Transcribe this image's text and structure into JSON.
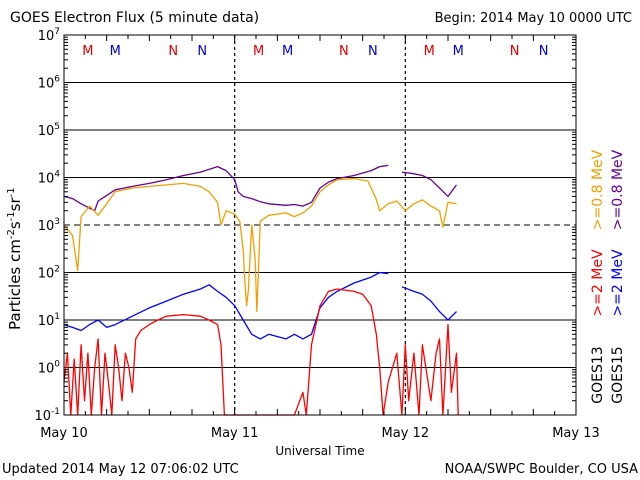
{
  "chart_data": {
    "type": "line",
    "title": "GOES Electron Flux (5 minute data)",
    "begin_label": "Begin: 2014 May 10 0000 UTC",
    "xlabel": "Universal Time",
    "ylabel_main": "Particles cm",
    "ylabel_sup1": "-2",
    "ylabel_mid1": "s",
    "ylabel_sup2": "-1",
    "ylabel_mid2": "sr",
    "ylabel_sup3": "-1",
    "x_ticks": [
      "May 10",
      "May 11",
      "May 12",
      "May 13"
    ],
    "x_range_days": [
      0,
      3
    ],
    "y_scale": "log",
    "ylim": [
      0.1,
      10000000
    ],
    "y_ticks": [
      {
        "base": "10",
        "exp": "7"
      },
      {
        "base": "10",
        "exp": "6"
      },
      {
        "base": "10",
        "exp": "5"
      },
      {
        "base": "10",
        "exp": "4"
      },
      {
        "base": "10",
        "exp": "3"
      },
      {
        "base": "10",
        "exp": "2"
      },
      {
        "base": "10",
        "exp": "1"
      },
      {
        "base": "10",
        "exp": "0"
      },
      {
        "base": "10",
        "exp": "-1"
      }
    ],
    "markers": [
      {
        "label": "M",
        "day": 0.14,
        "color": "#dd0000"
      },
      {
        "label": "M",
        "day": 0.3,
        "color": "#0000cc"
      },
      {
        "label": "N",
        "day": 0.64,
        "color": "#dd0000"
      },
      {
        "label": "N",
        "day": 0.81,
        "color": "#0000cc"
      },
      {
        "label": "M",
        "day": 1.14,
        "color": "#dd0000"
      },
      {
        "label": "M",
        "day": 1.31,
        "color": "#0000cc"
      },
      {
        "label": "N",
        "day": 1.64,
        "color": "#dd0000"
      },
      {
        "label": "N",
        "day": 1.81,
        "color": "#0000cc"
      },
      {
        "label": "M",
        "day": 2.14,
        "color": "#dd0000"
      },
      {
        "label": "M",
        "day": 2.31,
        "color": "#0000cc"
      },
      {
        "label": "N",
        "day": 2.64,
        "color": "#dd0000"
      },
      {
        "label": "N",
        "day": 2.81,
        "color": "#0000cc"
      }
    ],
    "threshold_line": 1000,
    "legend": [
      {
        "sat": "GOES13",
        "label": ">=0.8 MeV",
        "color": "#f0a000"
      },
      {
        "sat": "GOES15",
        "label": ">=0.8 MeV",
        "color": "#660099"
      },
      {
        "sat": "GOES13",
        "label": ">=2 MeV",
        "color": "#ff0000"
      },
      {
        "sat": "GOES15",
        "label": ">=2 MeV",
        "color": "#0000ff"
      }
    ],
    "legend_sat_labels": [
      "GOES13",
      "GOES15"
    ],
    "series": [
      {
        "name": "GOES15 >=0.8 MeV",
        "color": "#660099",
        "points": [
          [
            0.0,
            4000
          ],
          [
            0.05,
            3600
          ],
          [
            0.1,
            2800
          ],
          [
            0.18,
            2000
          ],
          [
            0.2,
            3200
          ],
          [
            0.25,
            4200
          ],
          [
            0.3,
            5500
          ],
          [
            0.4,
            6500
          ],
          [
            0.5,
            7500
          ],
          [
            0.6,
            9000
          ],
          [
            0.7,
            11000
          ],
          [
            0.8,
            13000
          ],
          [
            0.9,
            17000
          ],
          [
            0.95,
            14000
          ],
          [
            1.0,
            9000
          ],
          [
            1.02,
            5000
          ],
          [
            1.05,
            4000
          ],
          [
            1.1,
            3600
          ],
          [
            1.15,
            3100
          ],
          [
            1.2,
            2800
          ],
          [
            1.3,
            2600
          ],
          [
            1.35,
            2700
          ],
          [
            1.4,
            2500
          ],
          [
            1.45,
            3000
          ],
          [
            1.5,
            6000
          ],
          [
            1.55,
            8000
          ],
          [
            1.6,
            9500
          ],
          [
            1.7,
            11000
          ],
          [
            1.8,
            14000
          ],
          [
            1.85,
            17000
          ],
          [
            1.9,
            18000
          ]
        ]
      },
      {
        "name": "GOES15 >=0.8 MeV b",
        "color": "#660099",
        "points": [
          [
            1.98,
            13000
          ],
          [
            2.05,
            12000
          ],
          [
            2.1,
            11000
          ],
          [
            2.15,
            9000
          ],
          [
            2.2,
            6000
          ],
          [
            2.25,
            4000
          ],
          [
            2.27,
            5000
          ],
          [
            2.3,
            7000
          ]
        ]
      },
      {
        "name": "GOES13 >=0.8 MeV",
        "color": "#f0a000",
        "points": [
          [
            0.0,
            1000
          ],
          [
            0.05,
            600
          ],
          [
            0.08,
            110
          ],
          [
            0.1,
            1500
          ],
          [
            0.15,
            2500
          ],
          [
            0.2,
            1600
          ],
          [
            0.25,
            2800
          ],
          [
            0.3,
            5000
          ],
          [
            0.4,
            6000
          ],
          [
            0.5,
            6500
          ],
          [
            0.6,
            7000
          ],
          [
            0.7,
            7500
          ],
          [
            0.75,
            7000
          ],
          [
            0.8,
            6500
          ],
          [
            0.85,
            5000
          ],
          [
            0.9,
            3000
          ],
          [
            0.92,
            1000
          ],
          [
            0.95,
            2000
          ],
          [
            1.0,
            1700
          ],
          [
            1.03,
            1200
          ],
          [
            1.05,
            300
          ],
          [
            1.06,
            60
          ],
          [
            1.07,
            20
          ],
          [
            1.08,
            40
          ],
          [
            1.1,
            1000
          ],
          [
            1.12,
            200
          ],
          [
            1.13,
            15
          ],
          [
            1.15,
            1200
          ],
          [
            1.2,
            1600
          ],
          [
            1.3,
            1800
          ],
          [
            1.35,
            1500
          ],
          [
            1.4,
            1800
          ],
          [
            1.45,
            2500
          ],
          [
            1.5,
            5000
          ],
          [
            1.55,
            7000
          ],
          [
            1.6,
            9000
          ],
          [
            1.7,
            9500
          ],
          [
            1.78,
            8500
          ],
          [
            1.83,
            3500
          ],
          [
            1.85,
            2000
          ],
          [
            1.9,
            2800
          ],
          [
            1.95,
            3200
          ],
          [
            2.0,
            2000
          ],
          [
            2.05,
            2800
          ],
          [
            2.1,
            3400
          ],
          [
            2.15,
            2500
          ],
          [
            2.2,
            2000
          ],
          [
            2.22,
            900
          ],
          [
            2.25,
            3000
          ],
          [
            2.3,
            2800
          ]
        ]
      },
      {
        "name": "GOES15 >=2 MeV",
        "color": "#0000ff",
        "points": [
          [
            0.0,
            8
          ],
          [
            0.05,
            7
          ],
          [
            0.1,
            6
          ],
          [
            0.15,
            8
          ],
          [
            0.2,
            10
          ],
          [
            0.25,
            7
          ],
          [
            0.3,
            8
          ],
          [
            0.4,
            12
          ],
          [
            0.5,
            18
          ],
          [
            0.6,
            25
          ],
          [
            0.7,
            35
          ],
          [
            0.8,
            45
          ],
          [
            0.85,
            55
          ],
          [
            0.9,
            40
          ],
          [
            0.95,
            30
          ],
          [
            1.0,
            20
          ],
          [
            1.05,
            10
          ],
          [
            1.1,
            5
          ],
          [
            1.15,
            4
          ],
          [
            1.2,
            5
          ],
          [
            1.3,
            4
          ],
          [
            1.35,
            5
          ],
          [
            1.4,
            4
          ],
          [
            1.45,
            5
          ],
          [
            1.5,
            18
          ],
          [
            1.55,
            30
          ],
          [
            1.6,
            40
          ],
          [
            1.7,
            60
          ],
          [
            1.8,
            80
          ],
          [
            1.85,
            100
          ],
          [
            1.9,
            95
          ]
        ]
      },
      {
        "name": "GOES15 >=2 MeV b",
        "color": "#0000ff",
        "points": [
          [
            1.98,
            50
          ],
          [
            2.05,
            40
          ],
          [
            2.1,
            35
          ],
          [
            2.15,
            25
          ],
          [
            2.2,
            15
          ],
          [
            2.25,
            10
          ],
          [
            2.3,
            15
          ]
        ]
      },
      {
        "name": "GOES13 >=2 MeV",
        "color": "#ff0000",
        "points": [
          [
            0.0,
            0.5
          ],
          [
            0.02,
            2
          ],
          [
            0.04,
            0.1
          ],
          [
            0.06,
            1.5
          ],
          [
            0.08,
            0.1
          ],
          [
            0.1,
            3
          ],
          [
            0.12,
            0.2
          ],
          [
            0.14,
            2
          ],
          [
            0.16,
            0.1
          ],
          [
            0.18,
            1
          ],
          [
            0.2,
            4
          ],
          [
            0.22,
            0.1
          ],
          [
            0.24,
            2
          ],
          [
            0.26,
            0.5
          ],
          [
            0.28,
            0.1
          ],
          [
            0.3,
            3
          ],
          [
            0.32,
            1
          ],
          [
            0.34,
            0.2
          ],
          [
            0.36,
            2
          ],
          [
            0.38,
            1
          ],
          [
            0.4,
            0.3
          ],
          [
            0.42,
            4
          ],
          [
            0.45,
            6
          ],
          [
            0.5,
            8
          ],
          [
            0.55,
            10
          ],
          [
            0.6,
            12
          ],
          [
            0.7,
            13
          ],
          [
            0.8,
            12
          ],
          [
            0.85,
            10
          ],
          [
            0.9,
            8
          ],
          [
            0.92,
            3
          ],
          [
            0.94,
            0.1
          ],
          [
            1.0,
            0.1
          ],
          [
            1.1,
            0.1
          ],
          [
            1.2,
            0.1
          ],
          [
            1.3,
            0.1
          ],
          [
            1.35,
            0.1
          ],
          [
            1.4,
            0.3
          ],
          [
            1.42,
            0.1
          ],
          [
            1.45,
            3
          ],
          [
            1.5,
            20
          ],
          [
            1.55,
            40
          ],
          [
            1.6,
            45
          ],
          [
            1.7,
            40
          ],
          [
            1.75,
            35
          ],
          [
            1.8,
            20
          ],
          [
            1.83,
            5
          ],
          [
            1.85,
            1
          ],
          [
            1.87,
            0.1
          ],
          [
            1.9,
            0.5
          ],
          [
            1.95,
            2
          ],
          [
            1.98,
            0.1
          ],
          [
            2.0,
            3
          ],
          [
            2.02,
            0.2
          ],
          [
            2.05,
            2
          ],
          [
            2.08,
            0.1
          ],
          [
            2.1,
            3
          ],
          [
            2.12,
            1
          ],
          [
            2.15,
            0.2
          ],
          [
            2.18,
            2
          ],
          [
            2.2,
            4
          ],
          [
            2.22,
            0.1
          ],
          [
            2.25,
            8
          ],
          [
            2.27,
            0.3
          ],
          [
            2.3,
            2
          ],
          [
            2.31,
            0.1
          ]
        ]
      }
    ]
  },
  "footer": {
    "updated": "Updated 2014 May 12 07:06:02 UTC",
    "source": "NOAA/SWPC Boulder, CO USA"
  }
}
